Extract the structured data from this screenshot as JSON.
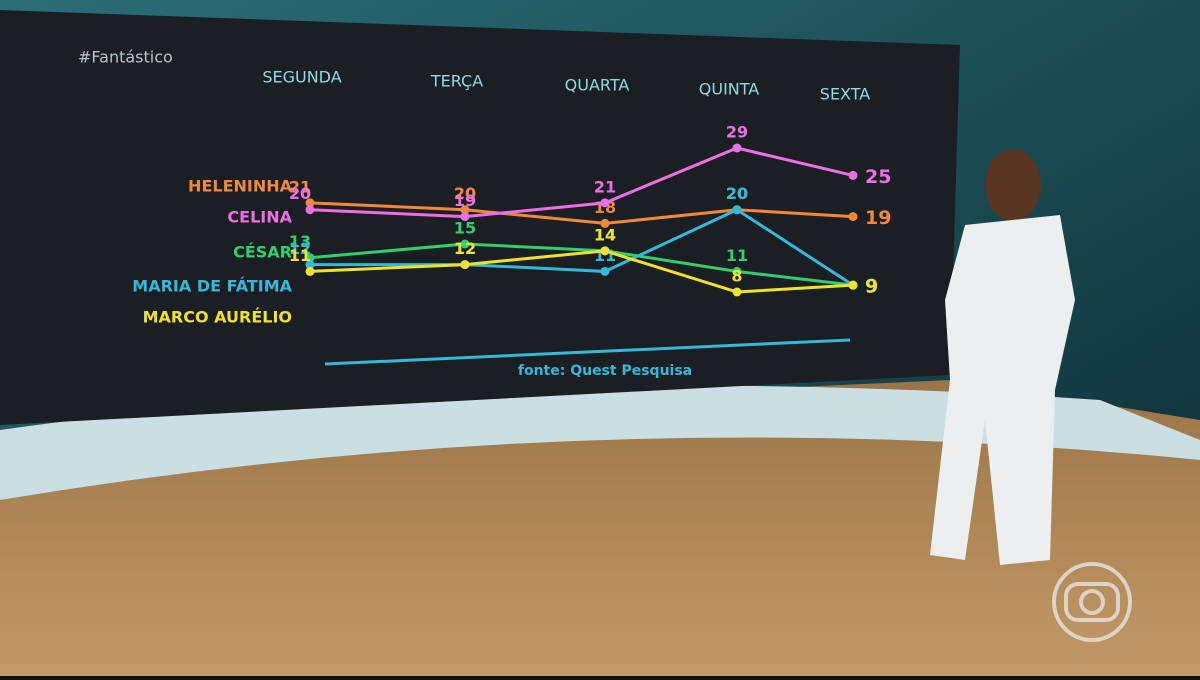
{
  "overlay": {
    "hashtag": "#Fantástico"
  },
  "chart_data": {
    "type": "line",
    "source": "fonte: Quest Pesquisa",
    "categories": [
      "SEGUNDA",
      "TERÇA",
      "QUARTA",
      "QUINTA",
      "SEXTA"
    ],
    "series": [
      {
        "name": "HELENINHA",
        "color": "#f2893a",
        "values": [
          21,
          20,
          18,
          20,
          19
        ]
      },
      {
        "name": "CELINA",
        "color": "#ec6fe6",
        "values": [
          20,
          19,
          21,
          29,
          25
        ]
      },
      {
        "name": "CÉSAR",
        "color": "#2fd06e",
        "values": [
          13,
          15,
          14,
          11,
          9
        ]
      },
      {
        "name": "MARIA DE FÁTIMA",
        "color": "#35b9db",
        "values": [
          12,
          12,
          11,
          20,
          9
        ]
      },
      {
        "name": "MARCO AURÉLIO",
        "color": "#efe22a",
        "values": [
          11,
          12,
          14,
          8,
          9
        ]
      }
    ]
  }
}
